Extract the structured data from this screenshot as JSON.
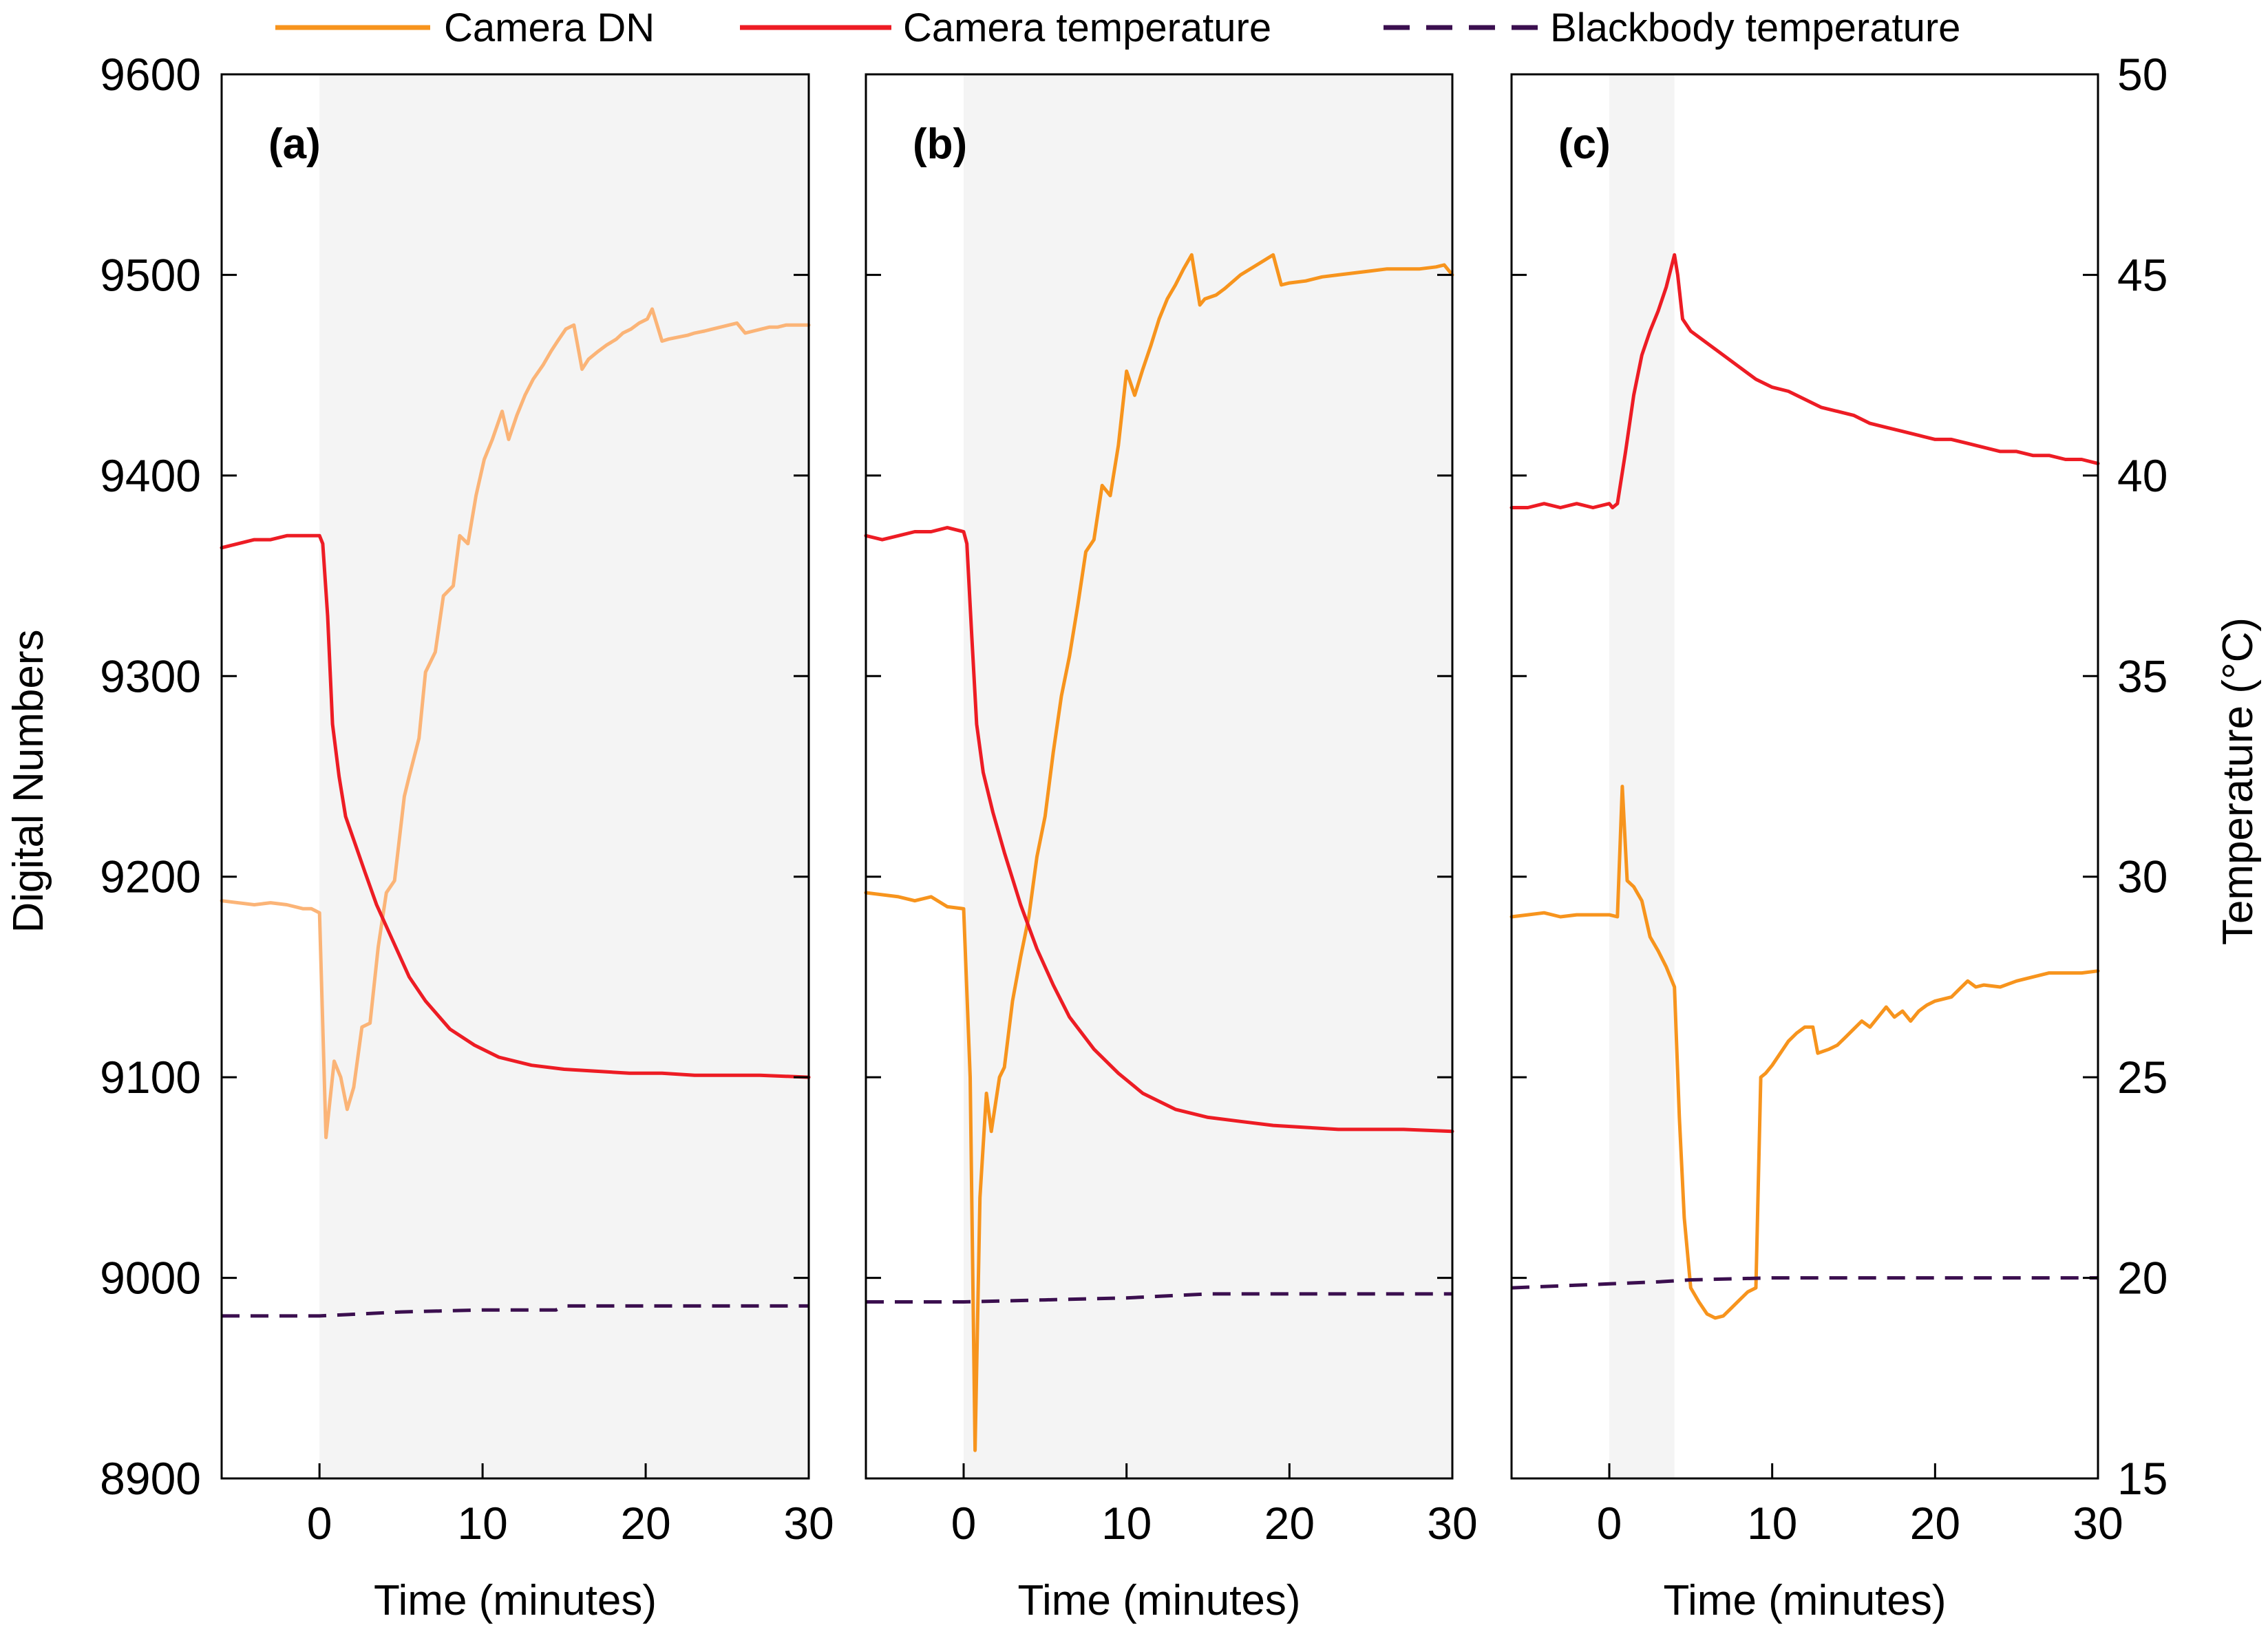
{
  "legend": {
    "camera_dn": "Camera DN",
    "camera_temperature": "Camera temperature",
    "blackbody_temperature": "Blackbody temperature"
  },
  "colors": {
    "camera_dn": "#f7941d",
    "camera_dn_light": "#fbb477",
    "camera_temperature": "#ed1c24",
    "blackbody_temperature": "#3b0f4f",
    "shade": "#f4f4f4"
  },
  "axes": {
    "left_label": "Digital Numbers",
    "right_label": "Temperature (°C)",
    "x_label": "Time (minutes)"
  },
  "chart_data": {
    "type": "line",
    "xlim": [
      -6,
      30
    ],
    "x_ticks": [
      0,
      10,
      20,
      30
    ],
    "x_tick_labels": [
      "0",
      "10",
      "20",
      "30"
    ],
    "ylim_left": [
      8900,
      9600
    ],
    "y_ticks_left": [
      8900,
      9000,
      9100,
      9200,
      9300,
      9400,
      9500,
      9600
    ],
    "y_tick_labels_left": [
      "8900",
      "9000",
      "9100",
      "9200",
      "9300",
      "9400",
      "9500",
      "9600"
    ],
    "ylim_right": [
      15,
      50
    ],
    "y_ticks_right": [
      15,
      20,
      25,
      30,
      35,
      40,
      45,
      50
    ],
    "y_tick_labels_right": [
      "15",
      "20",
      "25",
      "30",
      "35",
      "40",
      "45",
      "50"
    ],
    "panels": [
      {
        "label": "(a)",
        "shaded_range": [
          0,
          30
        ],
        "series": [
          {
            "name": "Camera DN",
            "axis": "left",
            "style": "solid-light",
            "x": [
              -6,
              -4,
              -3,
              -2,
              -1,
              -0.5,
              0,
              0.4,
              0.9,
              1.3,
              1.7,
              2.1,
              2.6,
              3.1,
              3.6,
              4.1,
              4.6,
              5.2,
              5.5,
              6.1,
              6.5,
              7.1,
              7.6,
              8.2,
              8.6,
              9.1,
              9.6,
              10.1,
              10.6,
              11.2,
              11.6,
              12.1,
              12.6,
              13.1,
              13.7,
              14.2,
              14.6,
              15.1,
              15.6,
              16.1,
              16.5,
              17.1,
              17.6,
              18.2,
              18.6,
              19.1,
              19.6,
              20.1,
              20.4,
              21,
              21.4,
              22,
              22.6,
              23,
              23.6,
              24.1,
              24.6,
              25.1,
              25.6,
              26.1,
              26.6,
              27.1,
              27.6,
              28.1,
              28.6,
              29.1,
              29.6,
              30
            ],
            "values": [
              9188,
              9186,
              9187,
              9186,
              9184,
              9184,
              9182,
              9070,
              9108,
              9100,
              9084,
              9095,
              9125,
              9127,
              9165,
              9192,
              9198,
              9240,
              9250,
              9269,
              9302,
              9312,
              9340,
              9345,
              9370,
              9366,
              9390,
              9408,
              9418,
              9432,
              9418,
              9430,
              9440,
              9448,
              9455,
              9462,
              9467,
              9473,
              9475,
              9453,
              9458,
              9462,
              9465,
              9468,
              9471,
              9473,
              9476,
              9478,
              9483,
              9467,
              9468,
              9469,
              9470,
              9471,
              9472,
              9473,
              9474,
              9475,
              9476,
              9471,
              9472,
              9473,
              9474,
              9474,
              9475,
              9475,
              9475,
              9475
            ]
          },
          {
            "name": "Camera temperature",
            "axis": "right",
            "style": "solid",
            "x": [
              -6,
              -5,
              -4,
              -3,
              -2,
              -1,
              0,
              0.2,
              0.5,
              0.8,
              1.2,
              1.6,
              2.2,
              2.8,
              3.5,
              4.5,
              5.5,
              6.5,
              8,
              9.5,
              11,
              13,
              15,
              17,
              19,
              21,
              23,
              25,
              27,
              30
            ],
            "values": [
              38.2,
              38.3,
              38.4,
              38.4,
              38.5,
              38.5,
              38.5,
              38.3,
              36.5,
              33.8,
              32.5,
              31.5,
              30.8,
              30.1,
              29.3,
              28.4,
              27.5,
              26.9,
              26.2,
              25.8,
              25.5,
              25.3,
              25.2,
              25.15,
              25.1,
              25.1,
              25.05,
              25.05,
              25.05,
              25.0
            ]
          },
          {
            "name": "Blackbody temperature",
            "axis": "right",
            "style": "dashed",
            "x": [
              -6,
              0,
              5,
              10,
              14.5,
              15,
              20,
              25,
              30
            ],
            "values": [
              19.05,
              19.05,
              19.15,
              19.2,
              19.2,
              19.3,
              19.3,
              19.3,
              19.3
            ]
          }
        ]
      },
      {
        "label": "(b)",
        "shaded_range": [
          0,
          30
        ],
        "series": [
          {
            "name": "Camera DN",
            "axis": "left",
            "style": "solid",
            "x": [
              -6,
              -4,
              -3,
              -2,
              -1,
              0,
              0.4,
              0.7,
              1,
              1.4,
              1.7,
              2.2,
              2.5,
              3.0,
              3.5,
              4.0,
              4.5,
              5.0,
              5.5,
              6,
              6.5,
              7,
              7.5,
              8,
              8.5,
              9,
              9.5,
              10,
              10.5,
              11,
              11.5,
              12,
              12.5,
              13,
              13.5,
              14,
              14.5,
              14.8,
              15.5,
              16,
              17,
              18,
              19,
              19.5,
              20,
              21,
              22,
              23,
              24,
              25,
              26,
              27,
              28,
              29,
              29.5,
              30
            ],
            "values": [
              9192,
              9190,
              9188,
              9190,
              9185,
              9184,
              9100,
              8914,
              9040,
              9092,
              9073,
              9100,
              9105,
              9138,
              9160,
              9180,
              9210,
              9230,
              9262,
              9290,
              9310,
              9335,
              9362,
              9368,
              9395,
              9390,
              9415,
              9452,
              9440,
              9453,
              9465,
              9478,
              9488,
              9495,
              9503,
              9510,
              9485,
              9488,
              9490,
              9493,
              9500,
              9505,
              9510,
              9495,
              9496,
              9497,
              9499,
              9500,
              9501,
              9502,
              9503,
              9503,
              9503,
              9504,
              9505,
              9500
            ]
          },
          {
            "name": "Camera temperature",
            "axis": "right",
            "style": "solid",
            "x": [
              -6,
              -5,
              -4,
              -3,
              -2,
              -1,
              0,
              0.2,
              0.5,
              0.8,
              1.2,
              1.8,
              2.5,
              3.5,
              4.5,
              5.5,
              6.5,
              8,
              9.5,
              11,
              13,
              15,
              17,
              19,
              21,
              23,
              25,
              27,
              30
            ],
            "values": [
              38.5,
              38.4,
              38.5,
              38.6,
              38.6,
              38.7,
              38.6,
              38.3,
              36.0,
              33.8,
              32.6,
              31.6,
              30.6,
              29.3,
              28.2,
              27.3,
              26.5,
              25.7,
              25.1,
              24.6,
              24.2,
              24.0,
              23.9,
              23.8,
              23.75,
              23.7,
              23.7,
              23.7,
              23.65
            ]
          },
          {
            "name": "Blackbody temperature",
            "axis": "right",
            "style": "dashed",
            "x": [
              -6,
              0,
              5,
              10,
              15,
              20,
              25,
              30
            ],
            "values": [
              19.4,
              19.4,
              19.45,
              19.5,
              19.6,
              19.6,
              19.6,
              19.6
            ]
          }
        ]
      },
      {
        "label": "(c)",
        "shaded_range": [
          0,
          4
        ],
        "series": [
          {
            "name": "Camera DN",
            "axis": "left",
            "style": "solid",
            "x": [
              -6,
              -5,
              -4,
              -3,
              -2,
              -1,
              0,
              0.5,
              0.8,
              1.1,
              1.5,
              2,
              2.5,
              3,
              3.5,
              4,
              4.3,
              4.6,
              5,
              5.5,
              6,
              6.5,
              7,
              7.5,
              8,
              8.5,
              9,
              9.3,
              9.6,
              10,
              10.5,
              11,
              11.5,
              12,
              12.5,
              12.8,
              13.5,
              14,
              14.5,
              15,
              15.5,
              16,
              16.5,
              17,
              17.5,
              18,
              18.5,
              19,
              19.5,
              20,
              21,
              21.5,
              22,
              22.5,
              23,
              24,
              25,
              26,
              27,
              28,
              29,
              30
            ],
            "values": [
              9180,
              9181,
              9182,
              9180,
              9181,
              9181,
              9181,
              9180,
              9245,
              9198,
              9195,
              9188,
              9170,
              9163,
              9155,
              9145,
              9080,
              9030,
              8995,
              8988,
              8982,
              8980,
              8981,
              8985,
              8989,
              8993,
              8995,
              9100,
              9102,
              9106,
              9112,
              9118,
              9122,
              9125,
              9125,
              9112,
              9114,
              9116,
              9120,
              9124,
              9128,
              9125,
              9130,
              9135,
              9130,
              9133,
              9128,
              9133,
              9136,
              9138,
              9140,
              9144,
              9148,
              9145,
              9146,
              9145,
              9148,
              9150,
              9152,
              9152,
              9152,
              9153
            ]
          },
          {
            "name": "Camera temperature",
            "axis": "right",
            "style": "solid",
            "x": [
              -6,
              -5,
              -4,
              -3,
              -2,
              -1,
              0,
              0.2,
              0.5,
              1,
              1.5,
              2,
              2.5,
              3,
              3.5,
              4,
              4.2,
              4.5,
              5,
              6,
              7,
              8,
              9,
              10,
              11,
              12,
              13,
              14,
              15,
              16,
              17,
              18,
              19,
              20,
              21,
              22,
              23,
              24,
              25,
              26,
              27,
              28,
              29,
              30
            ],
            "values": [
              39.2,
              39.2,
              39.3,
              39.2,
              39.3,
              39.2,
              39.3,
              39.2,
              39.3,
              40.6,
              42.0,
              43.0,
              43.6,
              44.1,
              44.7,
              45.5,
              45.0,
              43.9,
              43.6,
              43.3,
              43.0,
              42.7,
              42.4,
              42.2,
              42.1,
              41.9,
              41.7,
              41.6,
              41.5,
              41.3,
              41.2,
              41.1,
              41.0,
              40.9,
              40.9,
              40.8,
              40.7,
              40.6,
              40.6,
              40.5,
              40.5,
              40.4,
              40.4,
              40.3
            ]
          },
          {
            "name": "Blackbody temperature",
            "axis": "right",
            "style": "dashed",
            "x": [
              -6,
              0,
              3,
              5,
              10,
              15,
              20,
              25,
              30
            ],
            "values": [
              19.75,
              19.85,
              19.9,
              19.95,
              20.0,
              20.0,
              20.0,
              20.0,
              20.0
            ]
          }
        ]
      }
    ]
  }
}
